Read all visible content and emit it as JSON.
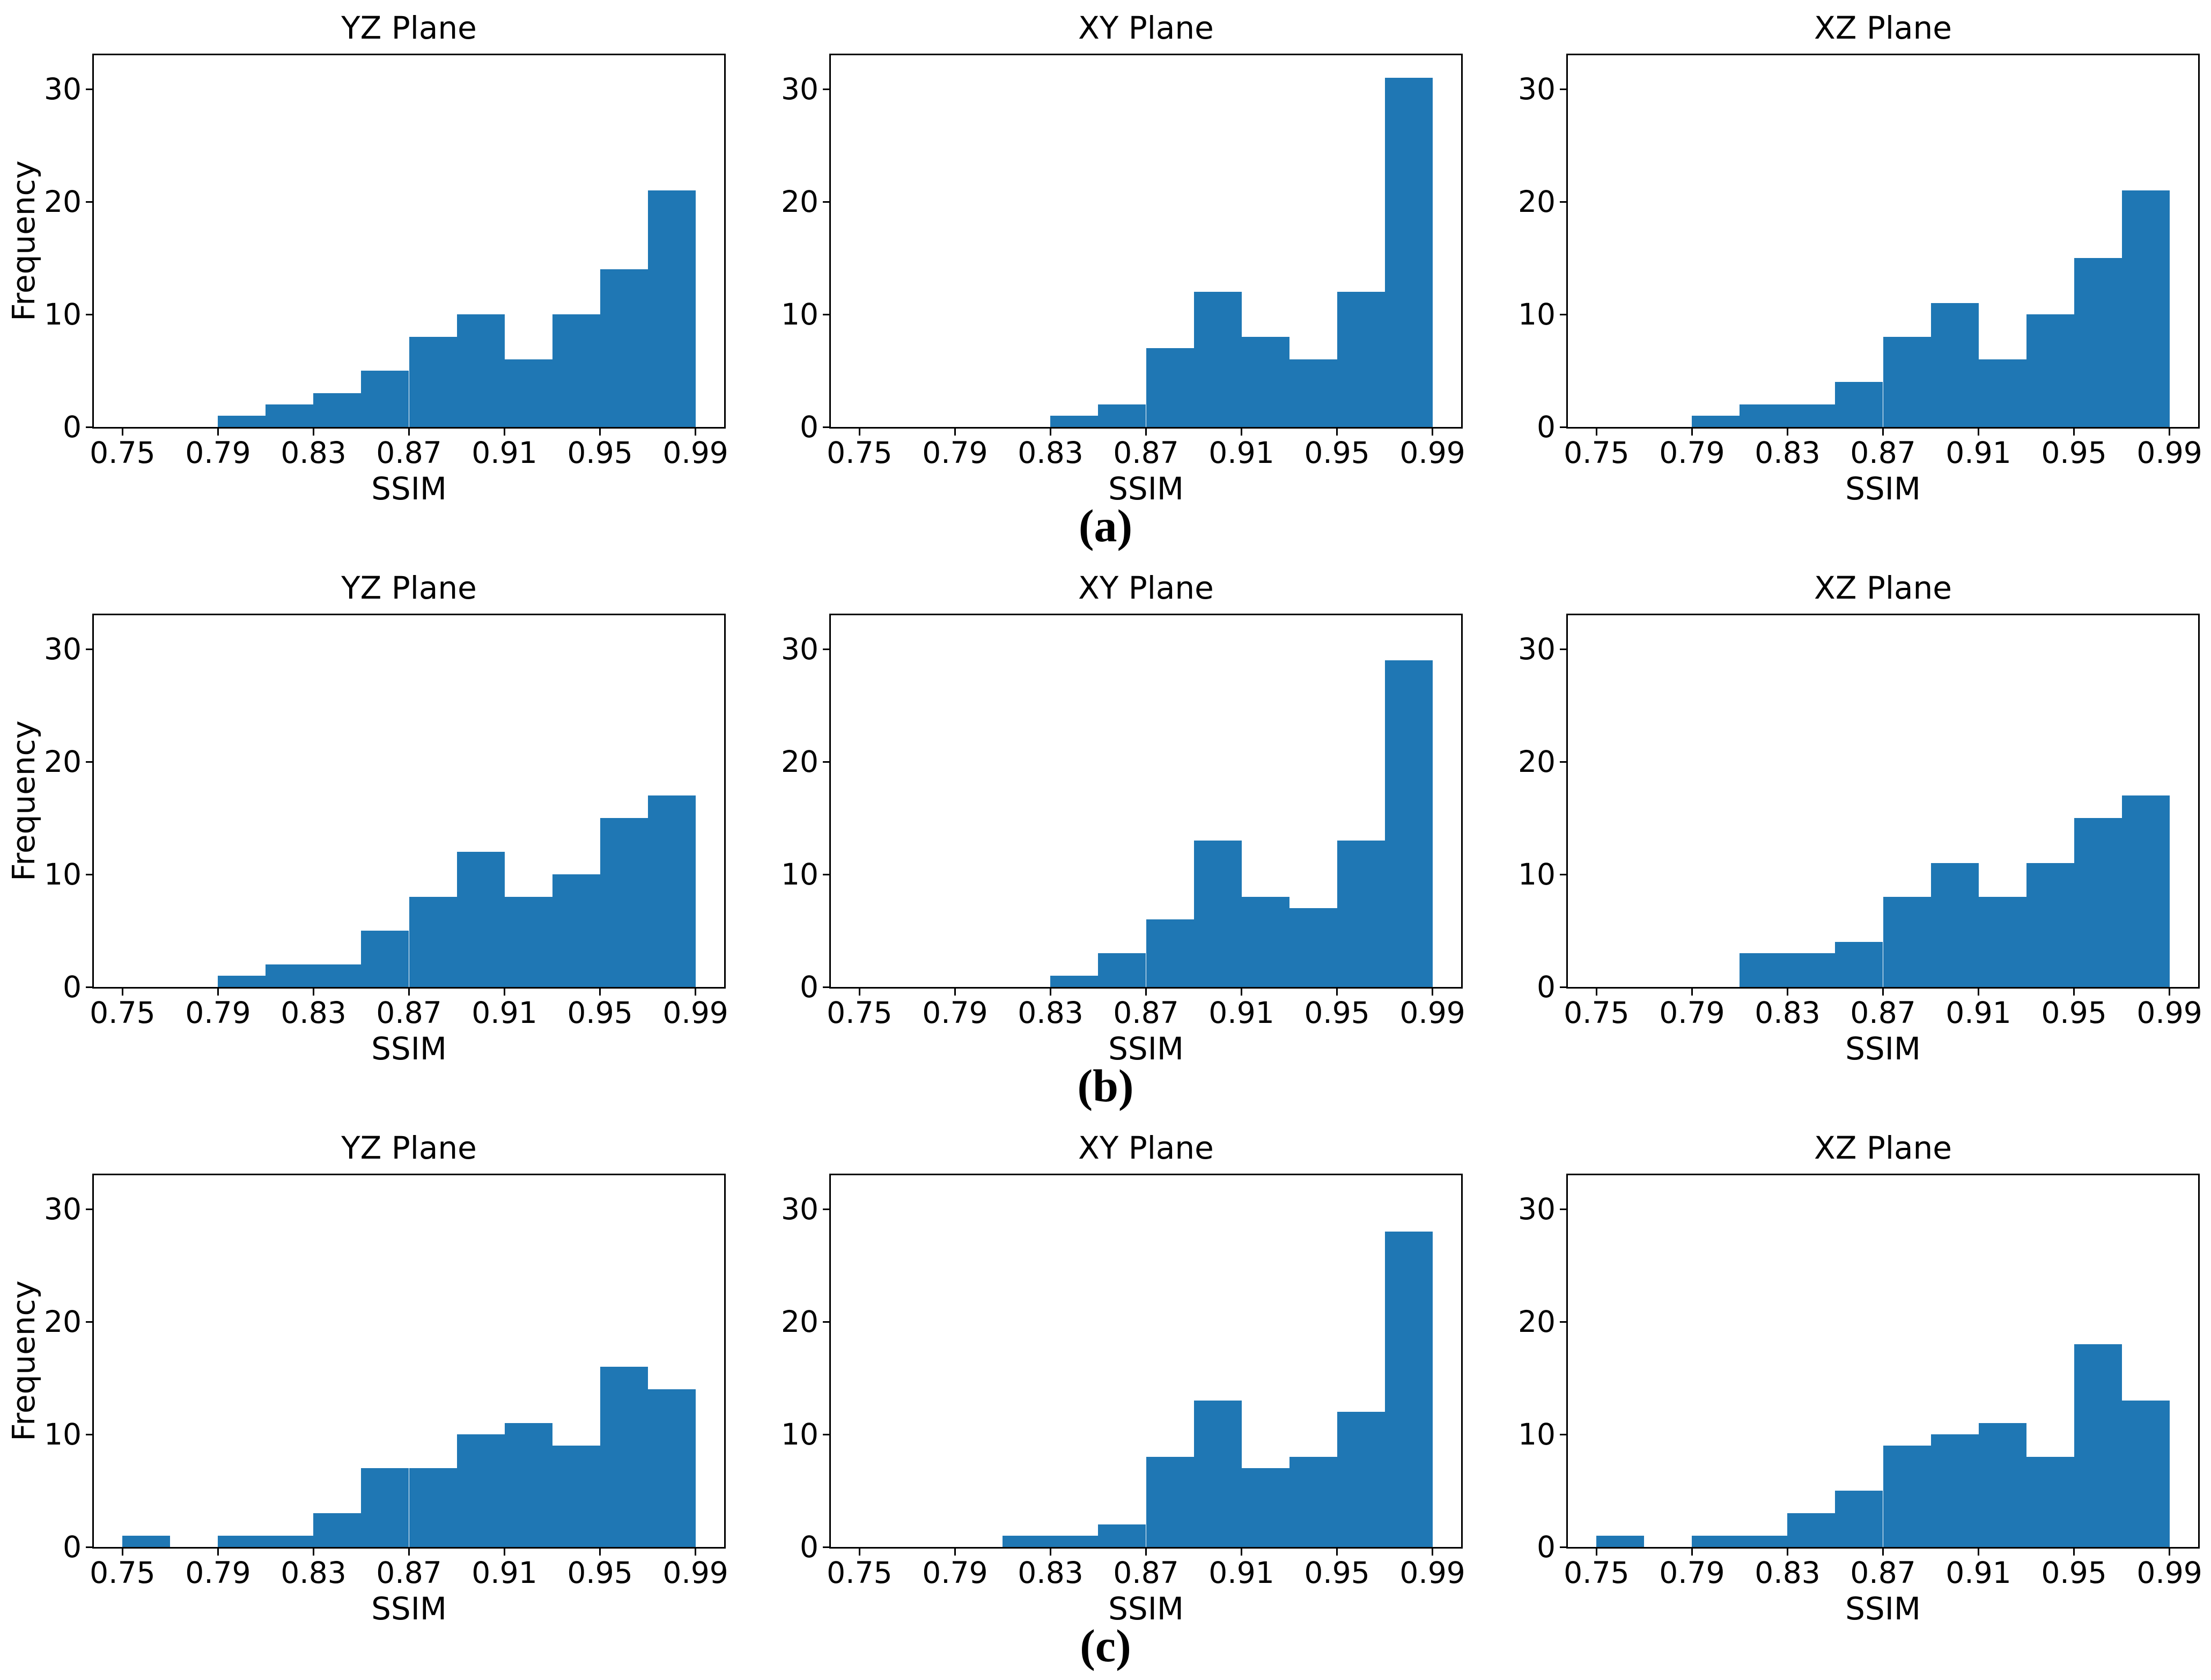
{
  "figure": {
    "background": "#ffffff",
    "bar_color": "#1f77b4",
    "axis_color": "#000000",
    "xlabel": "SSIM",
    "ylabel": "Frequency",
    "x_ticks": [
      0.75,
      0.79,
      0.83,
      0.87,
      0.91,
      0.95,
      0.99
    ],
    "x_tick_labels": [
      "0.75",
      "0.79",
      "0.83",
      "0.87",
      "0.91",
      "0.95",
      "0.99"
    ],
    "y_ticks": [
      0,
      10,
      20,
      30
    ],
    "y_tick_labels": [
      "0",
      "10",
      "20",
      "30"
    ],
    "xlim": [
      0.738,
      1.002
    ],
    "ylim": [
      0,
      33
    ],
    "bin_start": 0.75,
    "bin_width": 0.02,
    "grid": "off",
    "legend": "none"
  },
  "captions": [
    "(a)",
    "(b)",
    "(c)"
  ],
  "chart_data": [
    {
      "type": "bar",
      "panel": "a-YZ",
      "title": "YZ Plane",
      "xlabel": "SSIM",
      "ylabel": "Frequency",
      "bin_start": 0.75,
      "bin_width": 0.02,
      "counts": [
        0,
        0,
        1,
        2,
        3,
        5,
        8,
        10,
        6,
        10,
        14,
        21
      ]
    },
    {
      "type": "bar",
      "panel": "a-XY",
      "title": "XY Plane",
      "xlabel": "SSIM",
      "ylabel": "Frequency",
      "bin_start": 0.75,
      "bin_width": 0.02,
      "counts": [
        0,
        0,
        0,
        0,
        1,
        2,
        7,
        12,
        8,
        6,
        12,
        31
      ]
    },
    {
      "type": "bar",
      "panel": "a-XZ",
      "title": "XZ Plane",
      "xlabel": "SSIM",
      "ylabel": "Frequency",
      "bin_start": 0.75,
      "bin_width": 0.02,
      "counts": [
        0,
        0,
        1,
        2,
        2,
        4,
        8,
        11,
        6,
        10,
        15,
        21
      ]
    },
    {
      "type": "bar",
      "panel": "b-YZ",
      "title": "YZ Plane",
      "xlabel": "SSIM",
      "ylabel": "Frequency",
      "bin_start": 0.75,
      "bin_width": 0.02,
      "counts": [
        0,
        0,
        1,
        2,
        2,
        5,
        8,
        12,
        8,
        10,
        15,
        17
      ]
    },
    {
      "type": "bar",
      "panel": "b-XY",
      "title": "XY Plane",
      "xlabel": "SSIM",
      "ylabel": "Frequency",
      "bin_start": 0.75,
      "bin_width": 0.02,
      "counts": [
        0,
        0,
        0,
        0,
        1,
        3,
        6,
        13,
        8,
        7,
        13,
        29
      ]
    },
    {
      "type": "bar",
      "panel": "b-XZ",
      "title": "XZ Plane",
      "xlabel": "SSIM",
      "ylabel": "Frequency",
      "bin_start": 0.75,
      "bin_width": 0.02,
      "counts": [
        0,
        0,
        0,
        3,
        3,
        4,
        8,
        11,
        8,
        11,
        15,
        17
      ]
    },
    {
      "type": "bar",
      "panel": "c-YZ",
      "title": "YZ Plane",
      "xlabel": "SSIM",
      "ylabel": "Frequency",
      "bin_start": 0.75,
      "bin_width": 0.02,
      "counts": [
        1,
        0,
        1,
        1,
        3,
        7,
        7,
        10,
        11,
        9,
        16,
        14
      ]
    },
    {
      "type": "bar",
      "panel": "c-XY",
      "title": "XY Plane",
      "xlabel": "SSIM",
      "ylabel": "Frequency",
      "bin_start": 0.75,
      "bin_width": 0.02,
      "counts": [
        0,
        0,
        0,
        1,
        1,
        2,
        8,
        13,
        7,
        8,
        12,
        28
      ]
    },
    {
      "type": "bar",
      "panel": "c-XZ",
      "title": "XZ Plane",
      "xlabel": "SSIM",
      "ylabel": "Frequency",
      "bin_start": 0.75,
      "bin_width": 0.02,
      "counts": [
        1,
        0,
        1,
        1,
        3,
        5,
        9,
        10,
        11,
        8,
        18,
        13
      ]
    }
  ]
}
